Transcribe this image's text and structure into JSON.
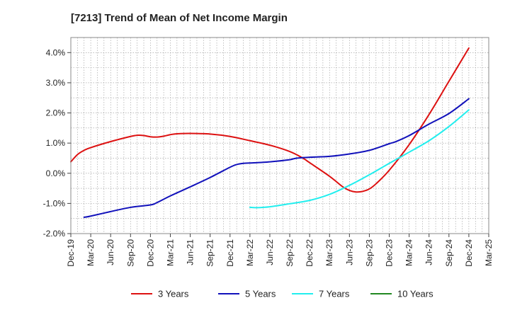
{
  "chart_data": {
    "type": "line",
    "title": "[7213]  Trend of Mean of Net Income Margin",
    "xlabel": "",
    "ylabel": "",
    "ylim": [
      -2.0,
      4.5
    ],
    "y_ticks": [
      -2.0,
      -1.0,
      0.0,
      1.0,
      2.0,
      3.0,
      4.0
    ],
    "y_tick_labels": [
      "-2.0%",
      "-1.0%",
      "0.0%",
      "1.0%",
      "2.0%",
      "3.0%",
      "4.0%"
    ],
    "x_ticks": [
      "Dec-19",
      "Mar-20",
      "Jun-20",
      "Sep-20",
      "Dec-20",
      "Mar-21",
      "Jun-21",
      "Sep-21",
      "Dec-21",
      "Mar-22",
      "Jun-22",
      "Sep-22",
      "Dec-22",
      "Mar-23",
      "Jun-23",
      "Sep-23",
      "Dec-23",
      "Mar-24",
      "Jun-24",
      "Sep-24",
      "Dec-24",
      "Mar-25"
    ],
    "grid": true,
    "legend_position": "bottom",
    "series": [
      {
        "name": "3 Years",
        "color": "#dd1111",
        "points": [
          [
            "Dec-19",
            0.38
          ],
          [
            "Jan-20",
            0.62
          ],
          [
            "Feb-20",
            0.76
          ],
          [
            "Mar-20",
            0.85
          ],
          [
            "Jun-20",
            1.05
          ],
          [
            "Sep-20",
            1.22
          ],
          [
            "Oct-20",
            1.26
          ],
          [
            "Nov-20",
            1.25
          ],
          [
            "Dec-20",
            1.21
          ],
          [
            "Jan-21",
            1.2
          ],
          [
            "Feb-21",
            1.23
          ],
          [
            "Mar-21",
            1.28
          ],
          [
            "Apr-21",
            1.31
          ],
          [
            "Jun-21",
            1.32
          ],
          [
            "Sep-21",
            1.3
          ],
          [
            "Dec-21",
            1.22
          ],
          [
            "Mar-22",
            1.08
          ],
          [
            "Jun-22",
            0.93
          ],
          [
            "Sep-22",
            0.72
          ],
          [
            "Nov-22",
            0.5
          ],
          [
            "Dec-22",
            0.35
          ],
          [
            "Mar-23",
            -0.1
          ],
          [
            "May-23",
            -0.45
          ],
          [
            "Jun-23",
            -0.57
          ],
          [
            "Jul-23",
            -0.62
          ],
          [
            "Aug-23",
            -0.6
          ],
          [
            "Sep-23",
            -0.52
          ],
          [
            "Oct-23",
            -0.35
          ],
          [
            "Dec-23",
            0.1
          ],
          [
            "Mar-24",
            0.95
          ],
          [
            "Jun-24",
            1.95
          ],
          [
            "Sep-24",
            3.05
          ],
          [
            "Dec-24",
            4.15
          ]
        ]
      },
      {
        "name": "5 Years",
        "color": "#1111bb",
        "points": [
          [
            "Feb-20",
            -1.46
          ],
          [
            "Mar-20",
            -1.42
          ],
          [
            "Jun-20",
            -1.27
          ],
          [
            "Sep-20",
            -1.13
          ],
          [
            "Dec-20",
            -1.05
          ],
          [
            "Jan-21",
            -0.97
          ],
          [
            "Mar-21",
            -0.75
          ],
          [
            "Jun-21",
            -0.45
          ],
          [
            "Sep-21",
            -0.14
          ],
          [
            "Dec-21",
            0.2
          ],
          [
            "Jan-22",
            0.29
          ],
          [
            "Feb-22",
            0.33
          ],
          [
            "Mar-22",
            0.34
          ],
          [
            "Jun-22",
            0.38
          ],
          [
            "Sep-22",
            0.45
          ],
          [
            "Oct-22",
            0.5
          ],
          [
            "Dec-22",
            0.53
          ],
          [
            "Mar-23",
            0.56
          ],
          [
            "Jun-23",
            0.64
          ],
          [
            "Sep-23",
            0.76
          ],
          [
            "Dec-23",
            0.98
          ],
          [
            "Jan-24",
            1.05
          ],
          [
            "Mar-24",
            1.25
          ],
          [
            "Jun-24",
            1.63
          ],
          [
            "Sep-24",
            1.98
          ],
          [
            "Dec-24",
            2.47
          ]
        ]
      },
      {
        "name": "7 Years",
        "color": "#22eeee",
        "points": [
          [
            "Mar-22",
            -1.13
          ],
          [
            "Apr-22",
            -1.14
          ],
          [
            "Jun-22",
            -1.11
          ],
          [
            "Sep-22",
            -1.01
          ],
          [
            "Dec-22",
            -0.9
          ],
          [
            "Mar-23",
            -0.7
          ],
          [
            "Jun-23",
            -0.4
          ],
          [
            "Sep-23",
            -0.05
          ],
          [
            "Dec-23",
            0.33
          ],
          [
            "Mar-24",
            0.7
          ],
          [
            "Jun-24",
            1.08
          ],
          [
            "Sep-24",
            1.55
          ],
          [
            "Dec-24",
            2.1
          ]
        ]
      },
      {
        "name": "10 Years",
        "color": "#228822",
        "points": []
      }
    ]
  }
}
